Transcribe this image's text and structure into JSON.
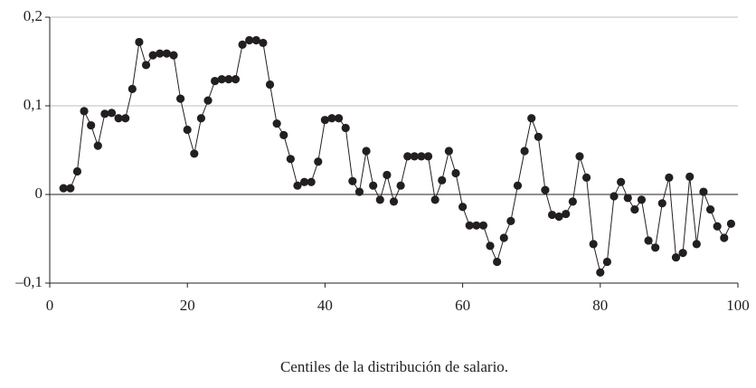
{
  "chart_data": {
    "type": "line",
    "x_label": "Centiles de la distribución de salario.",
    "x": [
      2,
      3,
      4,
      5,
      6,
      7,
      8,
      9,
      10,
      11,
      12,
      13,
      14,
      15,
      16,
      17,
      18,
      19,
      20,
      21,
      22,
      23,
      24,
      25,
      26,
      27,
      28,
      29,
      30,
      31,
      32,
      33,
      34,
      35,
      36,
      37,
      38,
      39,
      40,
      41,
      42,
      43,
      44,
      45,
      46,
      47,
      48,
      49,
      50,
      51,
      52,
      53,
      54,
      55,
      56,
      57,
      58,
      59,
      60,
      61,
      62,
      63,
      64,
      65,
      66,
      67,
      68,
      69,
      70,
      71,
      72,
      73,
      74,
      75,
      76,
      77,
      78,
      79,
      80,
      81,
      82,
      83,
      84,
      85,
      86,
      87,
      88,
      89,
      90,
      91,
      92,
      93,
      94,
      95,
      96,
      97,
      98,
      99
    ],
    "series": [
      {
        "color": "#231f20",
        "values": [
          0.007,
          0.007,
          0.026,
          0.094,
          0.078,
          0.055,
          0.091,
          0.092,
          0.086,
          0.086,
          0.119,
          0.172,
          0.146,
          0.157,
          0.159,
          0.159,
          0.157,
          0.108,
          0.073,
          0.046,
          0.086,
          0.106,
          0.128,
          0.13,
          0.13,
          0.13,
          0.169,
          0.174,
          0.174,
          0.171,
          0.124,
          0.08,
          0.067,
          0.04,
          0.01,
          0.014,
          0.014,
          0.037,
          0.084,
          0.086,
          0.086,
          0.075,
          0.015,
          0.003,
          0.049,
          0.01,
          -0.006,
          0.022,
          -0.008,
          0.01,
          0.043,
          0.043,
          0.043,
          0.043,
          -0.006,
          0.016,
          0.049,
          0.024,
          -0.014,
          -0.035,
          -0.035,
          -0.035,
          -0.058,
          -0.076,
          -0.049,
          -0.03,
          0.01,
          0.049,
          0.086,
          0.065,
          0.005,
          -0.023,
          -0.025,
          -0.022,
          -0.008,
          0.043,
          0.019,
          -0.056,
          -0.088,
          -0.076,
          -0.002,
          0.014,
          -0.004,
          -0.017,
          -0.006,
          -0.052,
          -0.06,
          -0.01,
          0.019,
          -0.071,
          -0.066,
          0.02,
          -0.056,
          0.003,
          -0.017,
          -0.036,
          -0.049,
          -0.033
        ]
      }
    ],
    "xlim": [
      0,
      100
    ],
    "xticks": [
      0,
      20,
      40,
      60,
      80,
      100
    ],
    "ylim": [
      -0.1,
      0.2
    ],
    "yticks": [
      {
        "value": -0.1,
        "label": "–0,1"
      },
      0,
      {
        "value": 0.1,
        "label": "0,1"
      },
      {
        "value": 0.2,
        "label": "0,2"
      }
    ],
    "grid": true
  }
}
